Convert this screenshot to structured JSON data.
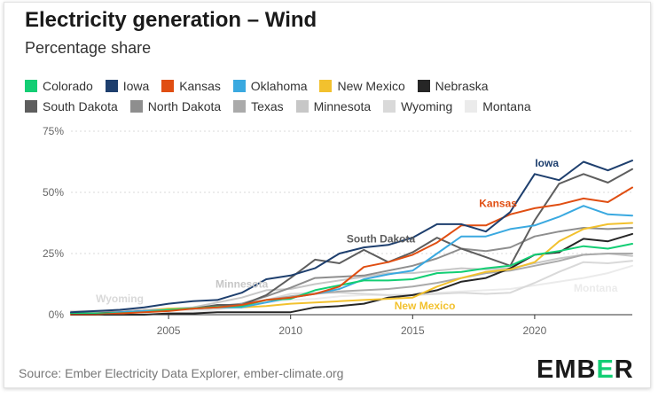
{
  "header": {
    "title": "Electricity generation – Wind",
    "subtitle": "Percentage share"
  },
  "footer": {
    "source": "Source: Ember Electricity Data Explorer, ember-climate.org",
    "logo_prefix": "EMB",
    "logo_accent": "E",
    "logo_suffix": "R"
  },
  "colors": {
    "accent": "#13ce74",
    "grid": "#d9d9d9",
    "axis": "#333333"
  },
  "chart_data": {
    "type": "line",
    "title": "Electricity generation – Wind",
    "subtitle": "Percentage share",
    "xlabel": "",
    "ylabel": "",
    "xlim": [
      2001,
      2024
    ],
    "ylim": [
      0,
      75
    ],
    "x_ticks": [
      2005,
      2010,
      2015,
      2020
    ],
    "x_tick_labels": [
      "2005",
      "2010",
      "2015",
      "2020"
    ],
    "y_ticks": [
      0,
      25,
      50,
      75
    ],
    "y_tick_labels": [
      "0%",
      "25%",
      "50%",
      "75%"
    ],
    "grid": true,
    "legend_position": "top-left",
    "years": [
      2001,
      2002,
      2003,
      2004,
      2005,
      2006,
      2007,
      2008,
      2009,
      2010,
      2011,
      2012,
      2013,
      2014,
      2015,
      2016,
      2017,
      2018,
      2019,
      2020,
      2021,
      2022,
      2023,
      2024
    ],
    "series": [
      {
        "name": "Colorado",
        "color": "#13ce74",
        "values": [
          0.5,
          0.5,
          0.6,
          1.0,
          2.0,
          2.6,
          3.2,
          3.5,
          6.0,
          6.5,
          10.0,
          12.0,
          14.0,
          14.0,
          14.5,
          17.0,
          17.5,
          19.0,
          20.0,
          24.5,
          26.0,
          28.0,
          27.0,
          29.0
        ]
      },
      {
        "name": "Iowa",
        "color": "#1e3f6e",
        "values": [
          1.0,
          1.5,
          2.0,
          3.0,
          4.5,
          5.5,
          6.0,
          9.0,
          14.5,
          16.0,
          19.0,
          25.0,
          27.5,
          28.5,
          31.5,
          37.0,
          37.0,
          34.0,
          42.0,
          57.5,
          55.0,
          62.5,
          59.0,
          63.0
        ]
      },
      {
        "name": "Kansas",
        "color": "#e04e12",
        "values": [
          0.0,
          0.0,
          0.5,
          1.0,
          1.5,
          2.5,
          3.0,
          4.0,
          6.0,
          7.0,
          8.5,
          11.5,
          19.5,
          21.5,
          24.5,
          29.5,
          36.5,
          36.5,
          41.0,
          43.5,
          45.0,
          47.5,
          46.0,
          52.0
        ]
      },
      {
        "name": "Oklahoma",
        "color": "#3aa9e0",
        "values": [
          0.0,
          0.0,
          1.0,
          1.5,
          2.0,
          2.5,
          3.0,
          3.0,
          5.0,
          7.0,
          8.5,
          10.5,
          14.5,
          16.5,
          18.0,
          25.0,
          32.0,
          32.0,
          35.0,
          36.5,
          40.0,
          44.5,
          41.0,
          40.5
        ]
      },
      {
        "name": "New Mexico",
        "color": "#f2c12e",
        "values": [
          0.0,
          0.0,
          0.5,
          1.5,
          2.5,
          2.5,
          3.0,
          3.0,
          3.5,
          4.5,
          5.0,
          5.5,
          6.0,
          6.5,
          7.0,
          11.5,
          15.0,
          17.5,
          18.5,
          21.5,
          30.0,
          35.0,
          37.0,
          37.5
        ]
      },
      {
        "name": "Nebraska",
        "color": "#262626",
        "values": [
          0.0,
          0.0,
          0.0,
          0.0,
          0.5,
          0.5,
          1.0,
          1.0,
          1.0,
          1.0,
          3.0,
          3.5,
          4.5,
          7.0,
          8.0,
          10.0,
          13.5,
          15.0,
          19.0,
          24.5,
          25.5,
          31.0,
          30.0,
          33.0
        ]
      },
      {
        "name": "South Dakota",
        "color": "#5e5e5e",
        "values": [
          0.5,
          0.5,
          1.0,
          1.5,
          2.0,
          2.5,
          4.0,
          4.0,
          8.0,
          15.0,
          22.5,
          21.0,
          26.5,
          21.5,
          25.5,
          31.5,
          27.0,
          23.5,
          20.0,
          38.5,
          53.5,
          57.5,
          54.0,
          59.5
        ]
      },
      {
        "name": "North Dakota",
        "color": "#8e8e8e",
        "values": [
          0.0,
          0.5,
          1.0,
          1.5,
          2.0,
          2.5,
          3.5,
          4.5,
          7.5,
          11.0,
          15.0,
          15.5,
          16.0,
          18.0,
          20.0,
          23.0,
          27.0,
          26.0,
          27.5,
          32.0,
          34.0,
          35.5,
          35.0,
          35.5
        ]
      },
      {
        "name": "Texas",
        "color": "#aaaaaa",
        "values": [
          0.5,
          1.0,
          1.0,
          1.5,
          2.0,
          2.5,
          3.0,
          4.5,
          6.0,
          7.5,
          8.5,
          9.5,
          10.0,
          10.5,
          11.5,
          13.0,
          15.0,
          17.0,
          18.0,
          20.0,
          22.0,
          24.5,
          25.0,
          25.0
        ]
      },
      {
        "name": "Minnesota",
        "color": "#c7c7c7",
        "values": [
          1.0,
          1.5,
          1.5,
          2.0,
          2.5,
          3.0,
          5.0,
          7.0,
          10.0,
          10.5,
          12.5,
          14.0,
          15.5,
          17.0,
          17.0,
          18.0,
          19.0,
          18.5,
          19.0,
          21.0,
          23.0,
          24.5,
          25.0,
          24.0
        ]
      },
      {
        "name": "Wyoming",
        "color": "#d9d9d9",
        "values": [
          1.5,
          1.5,
          1.5,
          2.0,
          2.0,
          2.0,
          2.5,
          3.0,
          6.0,
          8.5,
          9.0,
          9.0,
          8.5,
          8.0,
          8.0,
          8.5,
          9.0,
          8.5,
          9.0,
          13.0,
          17.5,
          21.5,
          21.0,
          22.0
        ]
      },
      {
        "name": "Montana",
        "color": "#ebebeb",
        "values": [
          0.0,
          0.0,
          0.0,
          0.0,
          0.5,
          1.0,
          2.0,
          4.0,
          5.0,
          6.0,
          6.5,
          7.5,
          8.0,
          8.0,
          8.5,
          9.0,
          9.5,
          10.0,
          10.5,
          12.0,
          13.5,
          15.0,
          17.0,
          20.0
        ]
      }
    ],
    "annotations": [
      {
        "label": "Iowa",
        "series": "Iowa",
        "x": 2020.5,
        "y": 60.5
      },
      {
        "label": "Kansas",
        "series": "Kansas",
        "x": 2018.5,
        "y": 44.0
      },
      {
        "label": "South Dakota",
        "series": "South Dakota",
        "x": 2013.7,
        "y": 29.5
      },
      {
        "label": "Minnesota",
        "series": "Minnesota",
        "x": 2008.0,
        "y": 11.0
      },
      {
        "label": "Wyoming",
        "series": "Wyoming",
        "x": 2003.0,
        "y": 5.0
      },
      {
        "label": "New Mexico",
        "series": "New Mexico",
        "x": 2015.5,
        "y": 2.2
      },
      {
        "label": "Montana",
        "series": "Montana",
        "x": 2022.5,
        "y": 9.5
      }
    ]
  }
}
